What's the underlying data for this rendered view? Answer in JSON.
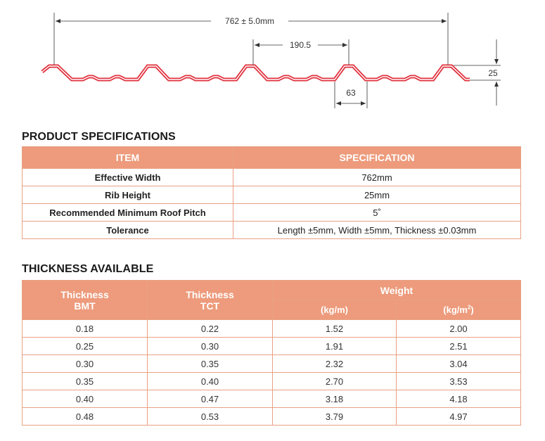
{
  "diagram": {
    "overall_width": "762 ± 5.0mm",
    "pitch": "190.5",
    "rib_height": "25",
    "rib_top_width": "63"
  },
  "spec_section": {
    "title": "PRODUCT SPECIFICATIONS",
    "headers": {
      "item": "ITEM",
      "spec": "SPECIFICATION"
    },
    "rows": [
      {
        "item": "Effective Width",
        "value": "762mm"
      },
      {
        "item": "Rib Height",
        "value": "25mm"
      },
      {
        "item": "Recommended Minimum Roof Pitch",
        "value": "5˚"
      },
      {
        "item": "Tolerance",
        "value": "Length ±5mm, Width ±5mm, Thickness ±0.03mm"
      }
    ]
  },
  "thickness_section": {
    "title": "THICKNESS AVAILABLE",
    "headers": {
      "bmt_line1": "Thickness",
      "bmt_line2": "BMT",
      "tct_line1": "Thickness",
      "tct_line2": "TCT",
      "weight": "Weight",
      "kgm": "(kg/m)",
      "kgm2_base": "(kg/m",
      "kgm2_sup": "2",
      "kgm2_close": ")"
    },
    "rows": [
      {
        "bmt": "0.18",
        "tct": "0.22",
        "kgm": "1.52",
        "kgm2": "2.00"
      },
      {
        "bmt": "0.25",
        "tct": "0.30",
        "kgm": "1.91",
        "kgm2": "2.51"
      },
      {
        "bmt": "0.30",
        "tct": "0.35",
        "kgm": "2.32",
        "kgm2": "3.04"
      },
      {
        "bmt": "0.35",
        "tct": "0.40",
        "kgm": "2.70",
        "kgm2": "3.53"
      },
      {
        "bmt": "0.40",
        "tct": "0.47",
        "kgm": "3.18",
        "kgm2": "4.18"
      },
      {
        "bmt": "0.48",
        "tct": "0.53",
        "kgm": "3.79",
        "kgm2": "4.97"
      }
    ]
  },
  "colors": {
    "profile": "#e0323e",
    "header_fill": "#ed9b7c",
    "border": "#e9a184"
  }
}
